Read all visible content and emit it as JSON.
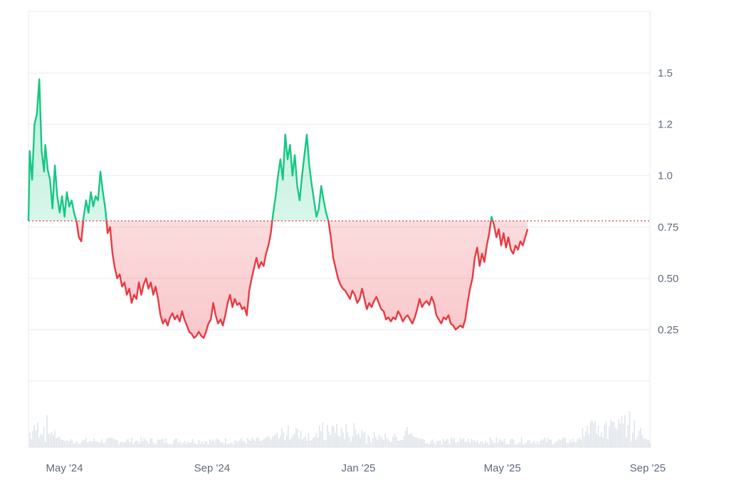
{
  "chart_data": {
    "type": "area",
    "title": "",
    "xlabel": "",
    "ylabel": "",
    "baseline": 0.78,
    "ylim": [
      0,
      1.8
    ],
    "xlim": [
      "2024-04-01",
      "2025-09-01"
    ],
    "y_ticks": [
      {
        "value": 0.25,
        "label": "0.25"
      },
      {
        "value": 0.5,
        "label": "0.50"
      },
      {
        "value": 0.75,
        "label": "0.75"
      },
      {
        "value": 1.0,
        "label": "1.0"
      },
      {
        "value": 1.25,
        "label": "1.2"
      },
      {
        "value": 1.5,
        "label": "1.5"
      }
    ],
    "x_ticks": [
      {
        "date": "2024-05-01",
        "label": "May '24"
      },
      {
        "date": "2024-09-01",
        "label": "Sep '24"
      },
      {
        "date": "2025-01-01",
        "label": "Jan '25"
      },
      {
        "date": "2025-05-01",
        "label": "May '25"
      },
      {
        "date": "2025-09-01",
        "label": "Sep '25"
      }
    ],
    "colors": {
      "above": "#16c784",
      "below": "#ea3943",
      "baseline": "#ea3943",
      "grid": "#e8ebef",
      "volume": "#d3d9e0"
    },
    "grid": true,
    "series": [
      {
        "values": [
          [
            "2024-04-01",
            0.78
          ],
          [
            "2024-04-02",
            1.12
          ],
          [
            "2024-04-04",
            0.98
          ],
          [
            "2024-04-06",
            1.25
          ],
          [
            "2024-04-08",
            1.3
          ],
          [
            "2024-04-10",
            1.47
          ],
          [
            "2024-04-12",
            1.12
          ],
          [
            "2024-04-14",
            1.02
          ],
          [
            "2024-04-15",
            1.15
          ],
          [
            "2024-04-17",
            1.03
          ],
          [
            "2024-04-19",
            0.98
          ],
          [
            "2024-04-21",
            0.84
          ],
          [
            "2024-04-23",
            1.05
          ],
          [
            "2024-04-25",
            0.9
          ],
          [
            "2024-04-27",
            0.82
          ],
          [
            "2024-04-29",
            0.9
          ],
          [
            "2024-05-01",
            0.8
          ],
          [
            "2024-05-03",
            0.92
          ],
          [
            "2024-05-05",
            0.85
          ],
          [
            "2024-05-07",
            0.88
          ],
          [
            "2024-05-09",
            0.82
          ],
          [
            "2024-05-11",
            0.78
          ],
          [
            "2024-05-13",
            0.7
          ],
          [
            "2024-05-15",
            0.68
          ],
          [
            "2024-05-17",
            0.8
          ],
          [
            "2024-05-19",
            0.88
          ],
          [
            "2024-05-21",
            0.82
          ],
          [
            "2024-05-23",
            0.92
          ],
          [
            "2024-05-25",
            0.85
          ],
          [
            "2024-05-27",
            0.9
          ],
          [
            "2024-05-29",
            0.88
          ],
          [
            "2024-05-31",
            1.02
          ],
          [
            "2024-06-02",
            0.92
          ],
          [
            "2024-06-04",
            0.84
          ],
          [
            "2024-06-06",
            0.72
          ],
          [
            "2024-06-08",
            0.75
          ],
          [
            "2024-06-10",
            0.62
          ],
          [
            "2024-06-12",
            0.55
          ],
          [
            "2024-06-14",
            0.5
          ],
          [
            "2024-06-16",
            0.52
          ],
          [
            "2024-06-18",
            0.46
          ],
          [
            "2024-06-20",
            0.48
          ],
          [
            "2024-06-22",
            0.42
          ],
          [
            "2024-06-24",
            0.45
          ],
          [
            "2024-06-26",
            0.38
          ],
          [
            "2024-06-28",
            0.42
          ],
          [
            "2024-06-30",
            0.4
          ],
          [
            "2024-07-02",
            0.48
          ],
          [
            "2024-07-04",
            0.42
          ],
          [
            "2024-07-06",
            0.47
          ],
          [
            "2024-07-08",
            0.5
          ],
          [
            "2024-07-10",
            0.45
          ],
          [
            "2024-07-12",
            0.48
          ],
          [
            "2024-07-14",
            0.42
          ],
          [
            "2024-07-16",
            0.46
          ],
          [
            "2024-07-18",
            0.4
          ],
          [
            "2024-07-20",
            0.32
          ],
          [
            "2024-07-22",
            0.28
          ],
          [
            "2024-07-24",
            0.3
          ],
          [
            "2024-07-26",
            0.27
          ],
          [
            "2024-07-28",
            0.31
          ],
          [
            "2024-07-30",
            0.33
          ],
          [
            "2024-08-01",
            0.3
          ],
          [
            "2024-08-03",
            0.32
          ],
          [
            "2024-08-05",
            0.29
          ],
          [
            "2024-08-07",
            0.34
          ],
          [
            "2024-08-09",
            0.3
          ],
          [
            "2024-08-11",
            0.27
          ],
          [
            "2024-08-13",
            0.24
          ],
          [
            "2024-08-15",
            0.23
          ],
          [
            "2024-08-17",
            0.21
          ],
          [
            "2024-08-19",
            0.22
          ],
          [
            "2024-08-21",
            0.24
          ],
          [
            "2024-08-23",
            0.22
          ],
          [
            "2024-08-25",
            0.21
          ],
          [
            "2024-08-27",
            0.24
          ],
          [
            "2024-08-29",
            0.28
          ],
          [
            "2024-08-31",
            0.3
          ],
          [
            "2024-09-02",
            0.38
          ],
          [
            "2024-09-04",
            0.32
          ],
          [
            "2024-09-06",
            0.28
          ],
          [
            "2024-09-08",
            0.3
          ],
          [
            "2024-09-10",
            0.27
          ],
          [
            "2024-09-12",
            0.32
          ],
          [
            "2024-09-14",
            0.38
          ],
          [
            "2024-09-16",
            0.42
          ],
          [
            "2024-09-18",
            0.36
          ],
          [
            "2024-09-20",
            0.4
          ],
          [
            "2024-09-22",
            0.37
          ],
          [
            "2024-09-24",
            0.38
          ],
          [
            "2024-09-26",
            0.35
          ],
          [
            "2024-09-28",
            0.36
          ],
          [
            "2024-09-30",
            0.32
          ],
          [
            "2024-10-02",
            0.44
          ],
          [
            "2024-10-04",
            0.5
          ],
          [
            "2024-10-06",
            0.55
          ],
          [
            "2024-10-08",
            0.6
          ],
          [
            "2024-10-10",
            0.55
          ],
          [
            "2024-10-12",
            0.58
          ],
          [
            "2024-10-14",
            0.56
          ],
          [
            "2024-10-16",
            0.62
          ],
          [
            "2024-10-18",
            0.66
          ],
          [
            "2024-10-20",
            0.72
          ],
          [
            "2024-10-22",
            0.82
          ],
          [
            "2024-10-24",
            0.9
          ],
          [
            "2024-10-26",
            1.0
          ],
          [
            "2024-10-28",
            1.08
          ],
          [
            "2024-10-30",
            0.98
          ],
          [
            "2024-11-01",
            1.2
          ],
          [
            "2024-11-03",
            1.08
          ],
          [
            "2024-11-05",
            1.15
          ],
          [
            "2024-11-07",
            1.0
          ],
          [
            "2024-11-09",
            1.1
          ],
          [
            "2024-11-11",
            0.95
          ],
          [
            "2024-11-13",
            0.88
          ],
          [
            "2024-11-15",
            1.0
          ],
          [
            "2024-11-17",
            1.1
          ],
          [
            "2024-11-19",
            1.2
          ],
          [
            "2024-11-21",
            1.05
          ],
          [
            "2024-11-23",
            0.96
          ],
          [
            "2024-11-25",
            0.88
          ],
          [
            "2024-11-27",
            0.8
          ],
          [
            "2024-11-29",
            0.84
          ],
          [
            "2024-12-01",
            0.95
          ],
          [
            "2024-12-03",
            0.88
          ],
          [
            "2024-12-05",
            0.82
          ],
          [
            "2024-12-07",
            0.78
          ],
          [
            "2024-12-09",
            0.7
          ],
          [
            "2024-12-11",
            0.6
          ],
          [
            "2024-12-13",
            0.55
          ],
          [
            "2024-12-15",
            0.5
          ],
          [
            "2024-12-17",
            0.47
          ],
          [
            "2024-12-19",
            0.45
          ],
          [
            "2024-12-21",
            0.44
          ],
          [
            "2024-12-23",
            0.42
          ],
          [
            "2024-12-25",
            0.4
          ],
          [
            "2024-12-27",
            0.44
          ],
          [
            "2024-12-29",
            0.42
          ],
          [
            "2024-12-31",
            0.38
          ],
          [
            "2025-01-02",
            0.4
          ],
          [
            "2025-01-04",
            0.45
          ],
          [
            "2025-01-06",
            0.4
          ],
          [
            "2025-01-08",
            0.35
          ],
          [
            "2025-01-10",
            0.38
          ],
          [
            "2025-01-12",
            0.36
          ],
          [
            "2025-01-14",
            0.39
          ],
          [
            "2025-01-16",
            0.41
          ],
          [
            "2025-01-18",
            0.38
          ],
          [
            "2025-01-20",
            0.35
          ],
          [
            "2025-01-22",
            0.34
          ],
          [
            "2025-01-24",
            0.3
          ],
          [
            "2025-01-26",
            0.31
          ],
          [
            "2025-01-28",
            0.29
          ],
          [
            "2025-01-30",
            0.31
          ],
          [
            "2025-02-01",
            0.3
          ],
          [
            "2025-02-03",
            0.34
          ],
          [
            "2025-02-05",
            0.32
          ],
          [
            "2025-02-07",
            0.29
          ],
          [
            "2025-02-09",
            0.31
          ],
          [
            "2025-02-11",
            0.32
          ],
          [
            "2025-02-13",
            0.3
          ],
          [
            "2025-02-15",
            0.28
          ],
          [
            "2025-02-17",
            0.31
          ],
          [
            "2025-02-19",
            0.35
          ],
          [
            "2025-02-21",
            0.4
          ],
          [
            "2025-02-23",
            0.36
          ],
          [
            "2025-02-25",
            0.38
          ],
          [
            "2025-02-27",
            0.39
          ],
          [
            "2025-03-01",
            0.37
          ],
          [
            "2025-03-03",
            0.41
          ],
          [
            "2025-03-05",
            0.38
          ],
          [
            "2025-03-07",
            0.32
          ],
          [
            "2025-03-09",
            0.3
          ],
          [
            "2025-03-11",
            0.28
          ],
          [
            "2025-03-13",
            0.31
          ],
          [
            "2025-03-15",
            0.3
          ],
          [
            "2025-03-17",
            0.32
          ],
          [
            "2025-03-19",
            0.28
          ],
          [
            "2025-03-21",
            0.27
          ],
          [
            "2025-03-23",
            0.25
          ],
          [
            "2025-03-25",
            0.26
          ],
          [
            "2025-03-27",
            0.27
          ],
          [
            "2025-03-29",
            0.26
          ],
          [
            "2025-03-31",
            0.3
          ],
          [
            "2025-04-02",
            0.38
          ],
          [
            "2025-04-04",
            0.45
          ],
          [
            "2025-04-06",
            0.5
          ],
          [
            "2025-04-08",
            0.6
          ],
          [
            "2025-04-10",
            0.65
          ],
          [
            "2025-04-12",
            0.56
          ],
          [
            "2025-04-14",
            0.62
          ],
          [
            "2025-04-16",
            0.58
          ],
          [
            "2025-04-18",
            0.66
          ],
          [
            "2025-04-20",
            0.72
          ],
          [
            "2025-04-22",
            0.8
          ],
          [
            "2025-04-24",
            0.76
          ],
          [
            "2025-04-26",
            0.7
          ],
          [
            "2025-04-28",
            0.74
          ],
          [
            "2025-04-30",
            0.66
          ],
          [
            "2025-05-02",
            0.72
          ],
          [
            "2025-05-04",
            0.65
          ],
          [
            "2025-05-06",
            0.7
          ],
          [
            "2025-05-08",
            0.64
          ],
          [
            "2025-05-10",
            0.62
          ],
          [
            "2025-05-12",
            0.66
          ],
          [
            "2025-05-14",
            0.64
          ],
          [
            "2025-05-16",
            0.68
          ],
          [
            "2025-05-18",
            0.66
          ],
          [
            "2025-05-20",
            0.7
          ],
          [
            "2025-05-22",
            0.74
          ]
        ]
      }
    ]
  }
}
